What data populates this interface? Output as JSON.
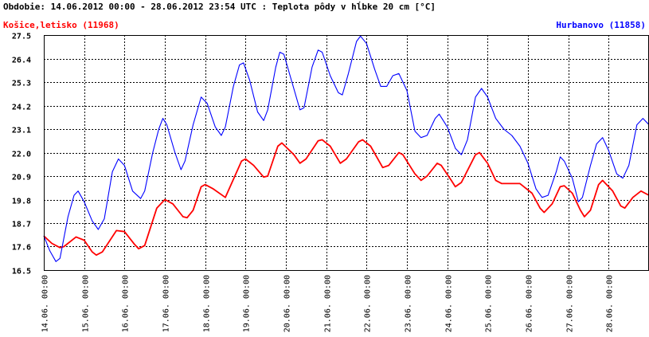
{
  "chart_data": {
    "type": "line",
    "title": "Obdobie: 14.06.2012 00:00 - 28.06.2012 23:54 UTC : Teplota pôdy v hĺbke 20 cm [°C]",
    "xlabel": "",
    "ylabel": "",
    "ylim": [
      16.5,
      27.5
    ],
    "xlim": [
      0,
      15
    ],
    "yticks": [
      "16.5",
      "17.6",
      "18.7",
      "19.8",
      "20.9",
      "22.0",
      "23.1",
      "24.2",
      "25.3",
      "26.4",
      "27.5"
    ],
    "xtick_labels": [
      "14.06. 00:00",
      "15.06. 00:00",
      "16.06. 00:00",
      "17.06. 00:00",
      "18.06. 00:00",
      "19.06. 00:00",
      "20.06. 00:00",
      "21.06. 00:00",
      "22.06. 00:00",
      "23.06. 00:00",
      "24.06. 00:00",
      "25.06. 00:00",
      "26.06. 00:00",
      "27.06. 00:00",
      "28.06. 00:00"
    ],
    "grid": true,
    "legend_placement": "top-left and top-right",
    "series": [
      {
        "name": "Košice,letisko (11968)",
        "color": "#ff0000",
        "points": [
          [
            0.0,
            18.1
          ],
          [
            0.2,
            17.75
          ],
          [
            0.4,
            17.55
          ],
          [
            0.5,
            17.6
          ],
          [
            0.8,
            18.05
          ],
          [
            1.0,
            17.9
          ],
          [
            1.2,
            17.35
          ],
          [
            1.3,
            17.2
          ],
          [
            1.45,
            17.35
          ],
          [
            1.8,
            18.35
          ],
          [
            2.0,
            18.3
          ],
          [
            2.25,
            17.7
          ],
          [
            2.35,
            17.5
          ],
          [
            2.5,
            17.65
          ],
          [
            2.8,
            19.4
          ],
          [
            3.0,
            19.8
          ],
          [
            3.2,
            19.6
          ],
          [
            3.45,
            19.0
          ],
          [
            3.55,
            18.95
          ],
          [
            3.7,
            19.3
          ],
          [
            3.9,
            20.4
          ],
          [
            4.0,
            20.5
          ],
          [
            4.2,
            20.3
          ],
          [
            4.5,
            19.9
          ],
          [
            4.9,
            21.6
          ],
          [
            5.0,
            21.7
          ],
          [
            5.2,
            21.4
          ],
          [
            5.45,
            20.85
          ],
          [
            5.55,
            20.9
          ],
          [
            5.8,
            22.3
          ],
          [
            5.9,
            22.45
          ],
          [
            6.2,
            21.9
          ],
          [
            6.35,
            21.5
          ],
          [
            6.5,
            21.7
          ],
          [
            6.8,
            22.55
          ],
          [
            6.9,
            22.6
          ],
          [
            7.1,
            22.3
          ],
          [
            7.35,
            21.5
          ],
          [
            7.5,
            21.7
          ],
          [
            7.8,
            22.5
          ],
          [
            7.9,
            22.6
          ],
          [
            8.1,
            22.3
          ],
          [
            8.4,
            21.3
          ],
          [
            8.55,
            21.4
          ],
          [
            8.8,
            22.0
          ],
          [
            8.9,
            21.9
          ],
          [
            9.2,
            21.0
          ],
          [
            9.35,
            20.7
          ],
          [
            9.5,
            20.9
          ],
          [
            9.75,
            21.5
          ],
          [
            9.85,
            21.4
          ],
          [
            10.1,
            20.7
          ],
          [
            10.2,
            20.4
          ],
          [
            10.35,
            20.6
          ],
          [
            10.7,
            21.9
          ],
          [
            10.8,
            22.0
          ],
          [
            11.0,
            21.5
          ],
          [
            11.2,
            20.7
          ],
          [
            11.35,
            20.55
          ],
          [
            11.8,
            20.55
          ],
          [
            12.1,
            20.1
          ],
          [
            12.3,
            19.4
          ],
          [
            12.4,
            19.2
          ],
          [
            12.6,
            19.6
          ],
          [
            12.8,
            20.4
          ],
          [
            12.9,
            20.45
          ],
          [
            13.1,
            20.1
          ],
          [
            13.3,
            19.3
          ],
          [
            13.4,
            19.0
          ],
          [
            13.55,
            19.3
          ],
          [
            13.75,
            20.5
          ],
          [
            13.85,
            20.7
          ],
          [
            14.1,
            20.2
          ],
          [
            14.3,
            19.5
          ],
          [
            14.4,
            19.4
          ],
          [
            14.6,
            19.9
          ],
          [
            14.8,
            20.2
          ],
          [
            15.0,
            20.0
          ]
        ]
      },
      {
        "name": "Hurbanovo (11858)",
        "color": "#0000ff",
        "points": [
          [
            0.0,
            18.1
          ],
          [
            0.15,
            17.4
          ],
          [
            0.3,
            16.9
          ],
          [
            0.4,
            17.05
          ],
          [
            0.6,
            19.0
          ],
          [
            0.75,
            20.0
          ],
          [
            0.85,
            20.2
          ],
          [
            1.0,
            19.7
          ],
          [
            1.2,
            18.8
          ],
          [
            1.35,
            18.4
          ],
          [
            1.5,
            18.9
          ],
          [
            1.7,
            21.1
          ],
          [
            1.85,
            21.7
          ],
          [
            2.0,
            21.4
          ],
          [
            2.2,
            20.2
          ],
          [
            2.4,
            19.85
          ],
          [
            2.5,
            20.2
          ],
          [
            2.7,
            22.0
          ],
          [
            2.85,
            23.1
          ],
          [
            2.95,
            23.6
          ],
          [
            3.05,
            23.3
          ],
          [
            3.25,
            22.0
          ],
          [
            3.4,
            21.2
          ],
          [
            3.5,
            21.6
          ],
          [
            3.7,
            23.3
          ],
          [
            3.9,
            24.6
          ],
          [
            4.05,
            24.3
          ],
          [
            4.25,
            23.2
          ],
          [
            4.4,
            22.8
          ],
          [
            4.5,
            23.2
          ],
          [
            4.7,
            25.1
          ],
          [
            4.85,
            26.1
          ],
          [
            4.95,
            26.2
          ],
          [
            5.1,
            25.4
          ],
          [
            5.3,
            23.9
          ],
          [
            5.45,
            23.5
          ],
          [
            5.55,
            24.0
          ],
          [
            5.75,
            26.0
          ],
          [
            5.85,
            26.7
          ],
          [
            5.95,
            26.6
          ],
          [
            6.15,
            25.3
          ],
          [
            6.35,
            24.0
          ],
          [
            6.45,
            24.1
          ],
          [
            6.65,
            26.0
          ],
          [
            6.8,
            26.8
          ],
          [
            6.9,
            26.7
          ],
          [
            7.1,
            25.6
          ],
          [
            7.3,
            24.8
          ],
          [
            7.4,
            24.7
          ],
          [
            7.55,
            25.7
          ],
          [
            7.75,
            27.2
          ],
          [
            7.85,
            27.45
          ],
          [
            8.0,
            27.1
          ],
          [
            8.2,
            25.9
          ],
          [
            8.35,
            25.1
          ],
          [
            8.5,
            25.1
          ],
          [
            8.65,
            25.6
          ],
          [
            8.8,
            25.7
          ],
          [
            9.0,
            24.9
          ],
          [
            9.2,
            23.0
          ],
          [
            9.35,
            22.7
          ],
          [
            9.5,
            22.8
          ],
          [
            9.7,
            23.6
          ],
          [
            9.8,
            23.8
          ],
          [
            10.0,
            23.2
          ],
          [
            10.2,
            22.2
          ],
          [
            10.35,
            21.9
          ],
          [
            10.5,
            22.6
          ],
          [
            10.7,
            24.6
          ],
          [
            10.85,
            25.0
          ],
          [
            11.0,
            24.6
          ],
          [
            11.2,
            23.6
          ],
          [
            11.4,
            23.1
          ],
          [
            11.6,
            22.8
          ],
          [
            11.8,
            22.3
          ],
          [
            12.0,
            21.5
          ],
          [
            12.2,
            20.3
          ],
          [
            12.35,
            19.9
          ],
          [
            12.5,
            20.0
          ],
          [
            12.7,
            21.1
          ],
          [
            12.8,
            21.8
          ],
          [
            12.9,
            21.6
          ],
          [
            13.1,
            20.8
          ],
          [
            13.25,
            19.7
          ],
          [
            13.35,
            19.9
          ],
          [
            13.55,
            21.4
          ],
          [
            13.7,
            22.4
          ],
          [
            13.85,
            22.7
          ],
          [
            14.0,
            22.1
          ],
          [
            14.2,
            21.0
          ],
          [
            14.35,
            20.8
          ],
          [
            14.5,
            21.4
          ],
          [
            14.7,
            23.3
          ],
          [
            14.85,
            23.6
          ],
          [
            15.0,
            23.3
          ]
        ]
      }
    ]
  }
}
